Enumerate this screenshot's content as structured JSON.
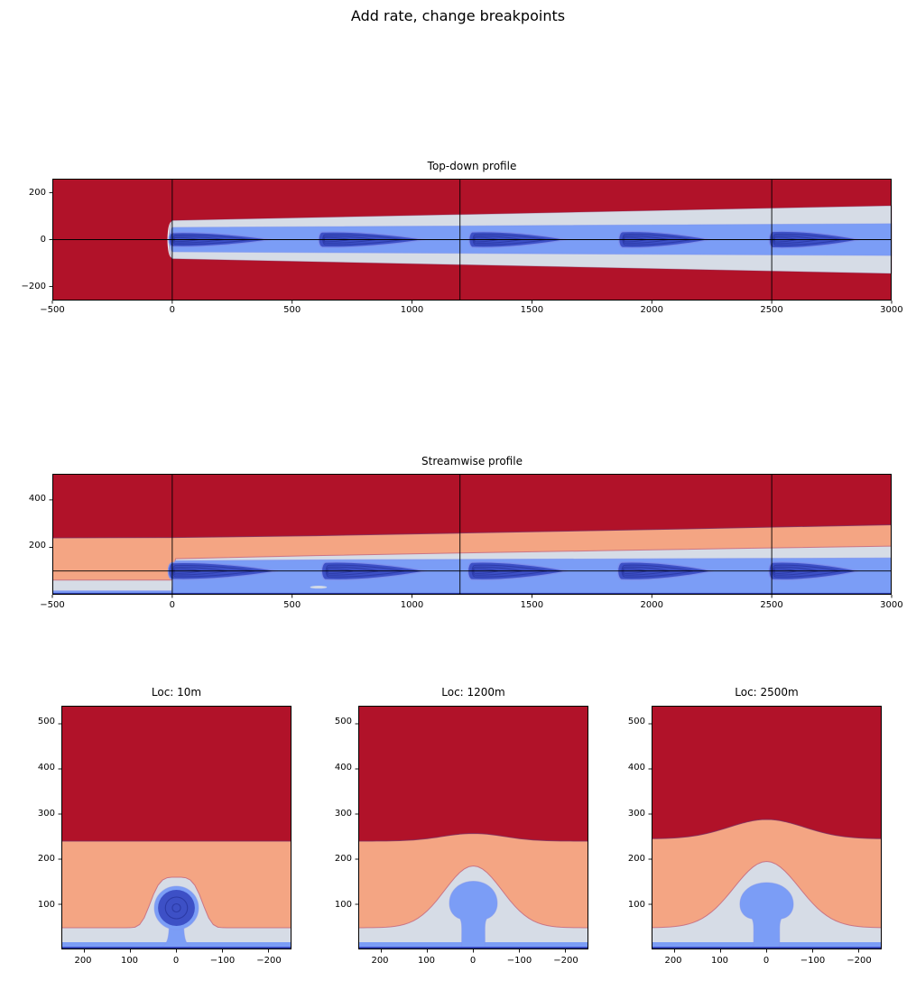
{
  "figure": {
    "title": "Add rate, change breakpoints"
  },
  "palette": {
    "red": "#b11229",
    "orange": "#f4a583",
    "lavender": "#d6dce6",
    "blue": "#7b9df6",
    "dark": "#3d50c6",
    "navy_line": "#2b3aa6",
    "white_cap": "#eef1f8",
    "edge_mauve": "#7a2c5f",
    "edge_pink": "#c4687e",
    "edge_blue": "#8093ee",
    "axis": "#000000"
  },
  "chart_data": {
    "type": "heatmap",
    "subtype": "filled-contour",
    "colormap": "coolwarm",
    "suptitle": "Add rate, change breakpoints",
    "panels": {
      "topdown": {
        "title": "Top-down profile",
        "xlim": [
          -500,
          3000
        ],
        "ylim": [
          -260,
          260
        ],
        "xtick_labels": [
          "−500",
          "0",
          "500",
          "1000",
          "1500",
          "2000",
          "2500",
          "3000"
        ],
        "ytick_labels": [
          "200",
          "0",
          "−200"
        ],
        "vlines": [
          0,
          1200,
          2500
        ],
        "hlines": [
          0
        ],
        "plume": {
          "cap_x": -18,
          "outer_hw0": 82,
          "outer_hw1": 145,
          "inner_cap_x": -12,
          "inner_hw0": 52,
          "inner_hw1": 68
        },
        "pulses": [
          [
            0,
            415
          ],
          [
            625,
            1055
          ],
          [
            1253,
            1645
          ],
          [
            1878,
            2245
          ],
          [
            2505,
            2870
          ]
        ],
        "pulse_hh": [
          34,
          37,
          38,
          39,
          40
        ],
        "pulse_cy": 0,
        "nested": [
          [
            0.78,
            0.66
          ],
          [
            0.52,
            0.45
          ],
          [
            0.27,
            0.26
          ]
        ]
      },
      "streamwise": {
        "title": "Streamwise profile",
        "xlim": [
          -500,
          3000
        ],
        "ylim": [
          0,
          510
        ],
        "xtick_labels": [
          "−500",
          "0",
          "500",
          "1000",
          "1500",
          "2000",
          "2500",
          "3000"
        ],
        "ytick_labels": [
          "400",
          "200"
        ],
        "vlines": [
          0,
          1200,
          2500
        ],
        "hlines": [
          100
        ],
        "red_top": [
          [
            -500,
            240
          ],
          [
            0,
            241
          ],
          [
            600,
            249
          ],
          [
            1200,
            260
          ],
          [
            1800,
            271
          ],
          [
            2400,
            283
          ],
          [
            3000,
            295
          ]
        ],
        "lav_left_y": 62,
        "lav_top": [
          [
            14,
            152
          ],
          [
            600,
            165
          ],
          [
            1200,
            176
          ],
          [
            1800,
            186
          ],
          [
            2400,
            196
          ],
          [
            3000,
            205
          ]
        ],
        "blue_left_y": 16,
        "blue_top": [
          [
            12,
            143
          ],
          [
            600,
            147
          ],
          [
            1200,
            149
          ],
          [
            1800,
            151
          ],
          [
            2400,
            153
          ],
          [
            3000,
            155
          ]
        ],
        "navy_strip": 8,
        "sliver": {
          "cx": 610,
          "cy": 32,
          "rx": 35,
          "ry": 6
        },
        "pulses": [
          [
            0,
            440
          ],
          [
            640,
            1060
          ],
          [
            1250,
            1650
          ],
          [
            1875,
            2255
          ],
          [
            2505,
            2865
          ]
        ],
        "pulse_hh": [
          40,
          42,
          42,
          42,
          42
        ],
        "pulse_cy": 100,
        "nested": [
          [
            0.78,
            0.66
          ],
          [
            0.52,
            0.45
          ],
          [
            0.27,
            0.26
          ]
        ]
      },
      "cross_sections": [
        {
          "title": "Loc: 10m",
          "xlim": [
            250,
            -250
          ],
          "ylim": [
            0,
            540
          ],
          "xtick_labels": [
            "200",
            "100",
            "0",
            "−100",
            "−200"
          ],
          "ytick_labels": [
            "500",
            "400",
            "300",
            "200",
            "100"
          ],
          "red_edge": 240,
          "red_peak": 240,
          "red_sigma": 100,
          "dome_peak": 160,
          "dome_sigma": 62,
          "dome_exp": 4,
          "blue": {
            "kind": "circle",
            "r": 48,
            "cy": 92,
            "neck_hw": 16,
            "dark_r": 40,
            "rings": [
              24,
              9
            ]
          },
          "strips": {
            "navy": 6,
            "blue": 16,
            "lavender": 48
          }
        },
        {
          "title": "Loc: 1200m",
          "xlim": [
            250,
            -250
          ],
          "ylim": [
            0,
            540
          ],
          "xtick_labels": [
            "200",
            "100",
            "0",
            "−100",
            "−200"
          ],
          "ytick_labels": [
            "500",
            "400",
            "300",
            "200",
            "100"
          ],
          "red_edge": 240,
          "red_peak": 257,
          "red_sigma": 95,
          "dome_peak": 185,
          "dome_sigma": 88,
          "dome_exp": 2,
          "blue": {
            "kind": "mushroom",
            "stem_hw": 25,
            "cap_rx": 52,
            "cap_cy": 102,
            "cap_top": 151
          },
          "strips": {
            "navy": 6,
            "blue": 16,
            "lavender": 48
          }
        },
        {
          "title": "Loc: 2500m",
          "xlim": [
            250,
            -250
          ],
          "ylim": [
            0,
            540
          ],
          "xtick_labels": [
            "200",
            "100",
            "0",
            "−100",
            "−200"
          ],
          "ytick_labels": [
            "500",
            "400",
            "300",
            "200",
            "100"
          ],
          "red_edge": 245,
          "red_peak": 288,
          "red_sigma": 115,
          "dome_peak": 195,
          "dome_sigma": 100,
          "dome_exp": 2,
          "blue": {
            "kind": "mushroom",
            "stem_hw": 28,
            "cap_rx": 58,
            "cap_cy": 100,
            "cap_top": 148
          },
          "strips": {
            "navy": 6,
            "blue": 16,
            "lavender": 48
          }
        }
      ]
    }
  }
}
